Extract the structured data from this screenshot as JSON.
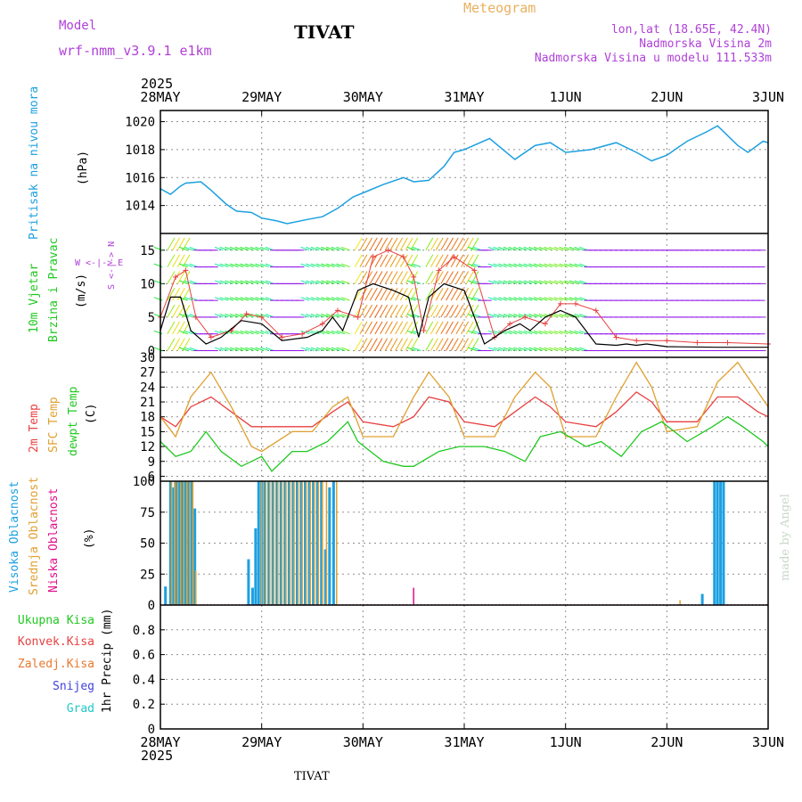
{
  "header": {
    "model_label": "Model",
    "model_name": "wrf-nmm_v3.9.1 e1km",
    "station": "TIVAT",
    "title": "Meteogram",
    "lonlat": "lon,lat (18.65E, 42.4N)",
    "elevation": "Nadmorska Visina 2m",
    "model_elevation": "Nadmorska Visina u modelu 111.533m",
    "footer_station": "TIVAT",
    "watermark": "made by Angel"
  },
  "colors": {
    "pressure": "#1ca0e0",
    "temp2m": "#e84040",
    "sfc_temp": "#e0a030",
    "dewpt": "#20c820",
    "high_cloud": "#1ca0e0",
    "mid_cloud": "#e0a030",
    "low_cloud": "#e0108c",
    "wind_speed": "#000000",
    "wind_gust": "#e84040"
  },
  "x_axis": {
    "year": "2025",
    "ticks": [
      "28MAY",
      "29MAY",
      "30MAY",
      "31MAY",
      "1JUN",
      "2JUN",
      "3JUN"
    ]
  },
  "panel_labels": {
    "pressure": {
      "label": "Pritisak na nivou mora",
      "unit": "(hPa)"
    },
    "wind": {
      "label1": "10m Vjetar",
      "label2": "Brzina i Pravac",
      "unit": "(m/s)",
      "compass_ns": "S <-|-> N",
      "compass_we": "W <-|-> E"
    },
    "temp": {
      "label1": "2m Temp",
      "label2": "SFC Temp",
      "label3": "dewpt Temp",
      "unit": "(C)"
    },
    "cloud": {
      "label1": "Visoka Oblacnost",
      "label2": "Srednja Oblacnost",
      "label3": "Niska Oblacnost",
      "unit": "(%)"
    },
    "precip": {
      "labels": [
        "Ukupna Kisa",
        "Konvek.Kisa",
        "Zaledj.Kisa",
        "Snijeg",
        "Grad"
      ],
      "unit": "1hr Precip (mm)"
    }
  },
  "chart_data": [
    {
      "type": "line",
      "name": "pressure",
      "ylim": [
        1012,
        1020.8
      ],
      "yticks": [
        1014,
        1016,
        1018,
        1020
      ],
      "x_days": [
        0,
        0.1,
        0.2,
        0.25,
        0.4,
        0.5,
        0.65,
        0.75,
        0.9,
        1.0,
        1.15,
        1.25,
        1.45,
        1.6,
        1.75,
        1.9,
        2.0,
        2.2,
        2.4,
        2.5,
        2.65,
        2.8,
        2.9,
        3.0,
        3.25,
        3.5,
        3.7,
        3.85,
        4.0,
        4.25,
        4.5,
        4.7,
        4.85,
        5.0,
        5.2,
        5.4,
        5.5,
        5.7,
        5.8,
        5.95,
        6.0
      ],
      "values": [
        1015.2,
        1014.8,
        1015.4,
        1015.6,
        1015.7,
        1015.1,
        1014.1,
        1013.6,
        1013.5,
        1013.1,
        1012.9,
        1012.7,
        1013.0,
        1013.2,
        1013.8,
        1014.6,
        1014.9,
        1015.5,
        1016.0,
        1015.7,
        1015.8,
        1016.8,
        1017.8,
        1018.0,
        1018.8,
        1017.3,
        1018.3,
        1018.5,
        1017.8,
        1018.0,
        1018.5,
        1017.8,
        1017.2,
        1017.6,
        1018.6,
        1019.3,
        1019.7,
        1018.3,
        1017.8,
        1018.6,
        1018.5
      ]
    },
    {
      "type": "line",
      "name": "wind",
      "ylim": [
        -1,
        17.5
      ],
      "yticks": [
        0,
        5,
        10,
        15
      ],
      "series": [
        {
          "name": "speed",
          "x_days": [
            0,
            0.1,
            0.2,
            0.3,
            0.45,
            0.6,
            0.8,
            1.0,
            1.2,
            1.45,
            1.6,
            1.7,
            1.8,
            1.95,
            2.1,
            2.3,
            2.45,
            2.55,
            2.65,
            2.8,
            3.0,
            3.2,
            3.4,
            3.55,
            3.65,
            3.8,
            3.95,
            4.1,
            4.3,
            4.5,
            4.6,
            4.7,
            4.8,
            5.0,
            5.5,
            6.0
          ],
          "values": [
            3,
            8,
            8,
            3,
            1,
            2,
            4.5,
            4,
            1.5,
            2,
            3,
            5,
            3,
            9,
            10,
            9,
            8,
            2,
            8,
            10,
            9,
            1,
            3,
            4,
            3,
            5,
            6,
            5,
            1,
            0.8,
            1,
            0.8,
            1,
            0.6,
            0.5,
            0.5
          ]
        },
        {
          "name": "gust",
          "x_days": [
            0,
            0.15,
            0.25,
            0.35,
            0.5,
            0.7,
            0.85,
            1.0,
            1.2,
            1.4,
            1.6,
            1.75,
            1.95,
            2.1,
            2.25,
            2.4,
            2.5,
            2.6,
            2.75,
            2.9,
            3.1,
            3.3,
            3.45,
            3.6,
            3.8,
            3.95,
            4.1,
            4.3,
            4.5,
            4.7,
            5.0,
            5.3,
            5.6,
            6.0
          ],
          "values": [
            5,
            11,
            12,
            5,
            2,
            3,
            5.5,
            5,
            2,
            2.5,
            4,
            6,
            5,
            14,
            15,
            14,
            11,
            3,
            12,
            14,
            12,
            2,
            4,
            5,
            4,
            7,
            7,
            6,
            2,
            1.5,
            1.5,
            1.2,
            1.2,
            1
          ]
        }
      ]
    },
    {
      "type": "line",
      "name": "temperature",
      "ylim": [
        5,
        30
      ],
      "yticks": [
        6,
        9,
        12,
        15,
        18,
        21,
        24,
        27,
        30
      ],
      "series": [
        {
          "name": "2m Temp",
          "x_days": [
            0,
            0.15,
            0.3,
            0.5,
            0.7,
            0.9,
            1.0,
            1.3,
            1.5,
            1.7,
            1.85,
            2.0,
            2.3,
            2.5,
            2.65,
            2.85,
            3.0,
            3.3,
            3.5,
            3.7,
            3.85,
            4.0,
            4.3,
            4.5,
            4.7,
            4.85,
            5.0,
            5.3,
            5.5,
            5.7,
            5.9,
            6.0
          ],
          "values": [
            18,
            16,
            20,
            22,
            19,
            16,
            16,
            16,
            16,
            19,
            21,
            17,
            16,
            18,
            22,
            21,
            17,
            16,
            19,
            22,
            20,
            17,
            16,
            19,
            23,
            21,
            17,
            17,
            22,
            22,
            19,
            18
          ]
        },
        {
          "name": "SFC Temp",
          "x_days": [
            0,
            0.15,
            0.3,
            0.5,
            0.7,
            0.9,
            1.0,
            1.3,
            1.5,
            1.7,
            1.85,
            2.0,
            2.3,
            2.5,
            2.65,
            2.85,
            3.0,
            3.3,
            3.5,
            3.7,
            3.85,
            4.0,
            4.3,
            4.5,
            4.7,
            4.85,
            5.0,
            5.3,
            5.5,
            5.7,
            5.9,
            6.0
          ],
          "values": [
            18,
            14,
            22,
            27,
            20,
            12,
            11,
            15,
            15,
            20,
            22,
            14,
            14,
            22,
            27,
            22,
            14,
            14,
            22,
            27,
            24,
            14,
            14,
            22,
            29,
            24,
            15,
            16,
            25,
            29,
            23,
            20
          ]
        },
        {
          "name": "dewpt Temp",
          "x_days": [
            0,
            0.15,
            0.3,
            0.45,
            0.6,
            0.8,
            1.0,
            1.1,
            1.3,
            1.45,
            1.65,
            1.75,
            1.85,
            1.95,
            2.2,
            2.4,
            2.5,
            2.75,
            2.95,
            3.2,
            3.4,
            3.6,
            3.75,
            3.95,
            4.2,
            4.35,
            4.55,
            4.75,
            4.95,
            5.2,
            5.45,
            5.6,
            5.75,
            5.95,
            6.0
          ],
          "values": [
            13,
            10,
            11,
            15,
            11,
            8,
            10,
            7,
            11,
            11,
            13,
            15,
            17,
            13,
            9,
            8,
            8,
            11,
            12,
            12,
            11,
            9,
            14,
            15,
            12,
            13,
            10,
            15,
            17,
            13,
            16,
            18,
            16,
            13,
            12
          ]
        }
      ]
    },
    {
      "type": "bar",
      "name": "cloud_cover",
      "ylim": [
        0,
        100
      ],
      "yticks": [
        0,
        25,
        50,
        75,
        100
      ],
      "series": [
        {
          "name": "Visoka Oblacnost",
          "x_days": [
            0.05,
            0.1,
            0.13,
            0.16,
            0.19,
            0.22,
            0.25,
            0.28,
            0.31,
            0.34,
            0.87,
            0.91,
            0.94,
            0.97,
            1.0,
            1.03,
            1.07,
            1.11,
            1.15,
            1.19,
            1.23,
            1.27,
            1.31,
            1.35,
            1.39,
            1.43,
            1.47,
            1.51,
            1.55,
            1.59,
            1.63,
            1.67,
            1.71,
            5.35,
            5.47,
            5.5,
            5.53,
            5.56
          ],
          "values": [
            15,
            100,
            95,
            100,
            100,
            100,
            100,
            100,
            100,
            78,
            37,
            14,
            62,
            100,
            100,
            100,
            100,
            100,
            100,
            100,
            100,
            100,
            100,
            100,
            100,
            100,
            100,
            100,
            100,
            100,
            45,
            95,
            100,
            9,
            100,
            100,
            100,
            100
          ]
        },
        {
          "name": "Srednja Oblacnost",
          "x_days": [
            0.11,
            0.14,
            0.17,
            0.2,
            0.23,
            0.26,
            0.29,
            0.32,
            0.35,
            1.0,
            1.04,
            1.08,
            1.12,
            1.16,
            1.2,
            1.24,
            1.28,
            1.32,
            1.36,
            1.4,
            1.44,
            1.48,
            1.52,
            1.56,
            1.6,
            1.64,
            1.74,
            5.13
          ],
          "values": [
            100,
            100,
            100,
            100,
            100,
            100,
            100,
            100,
            28,
            100,
            100,
            100,
            100,
            100,
            100,
            100,
            100,
            100,
            100,
            100,
            100,
            100,
            100,
            100,
            100,
            100,
            100,
            4
          ]
        },
        {
          "name": "Niska Oblacnost",
          "x_days": [
            2.5
          ],
          "values": [
            14
          ]
        }
      ]
    },
    {
      "type": "bar",
      "name": "precipitation",
      "ylim": [
        0,
        1
      ],
      "yticks": [
        0,
        0.2,
        0.4,
        0.6,
        0.8
      ],
      "values": []
    }
  ]
}
